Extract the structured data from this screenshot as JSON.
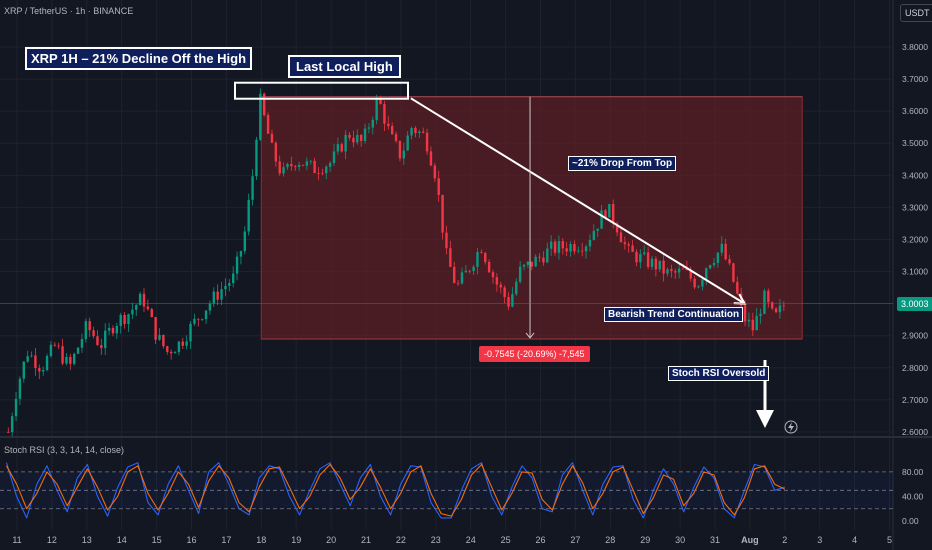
{
  "header": {
    "symbol_line": "XRP / TetherUS · 1h · BINANCE",
    "currency_tag": "USDT"
  },
  "annotations": {
    "title": "XRP 1H – 21% Decline Off the High",
    "last_local_high": "Last Local High",
    "drop_from_top": "~21% Drop From Top",
    "bearish_trend": "Bearish Trend Continuation",
    "stoch_rsi_oversold": "Stoch RSI Oversold",
    "measure_label": "-0.7545 (-20.69%) -7,545"
  },
  "current_price": "3.0003",
  "colors": {
    "background": "#131722",
    "up_candle": "#089981",
    "down_candle": "#f23645",
    "range_fill": "#5c1f24",
    "stoch_k": "#2962ff",
    "stoch_d": "#ff6d00",
    "annotation_box": "#0f1f5c"
  },
  "chart_data": [
    {
      "type": "candlestick",
      "title": "XRP / TetherUS · 1h · BINANCE",
      "y_axis_ticks": [
        "3.8000",
        "3.7000",
        "3.6000",
        "3.5000",
        "3.4000",
        "3.3000",
        "3.2000",
        "3.1000",
        "3.0000",
        "2.9000",
        "2.8000",
        "2.7000",
        "2.6000"
      ],
      "ylim": [
        2.58,
        3.85
      ],
      "x_axis_ticks": [
        "11",
        "12",
        "13",
        "14",
        "15",
        "16",
        "17",
        "18",
        "19",
        "20",
        "21",
        "22",
        "23",
        "24",
        "25",
        "26",
        "27",
        "28",
        "29",
        "30",
        "31",
        "Aug",
        "2",
        "3",
        "4",
        "5"
      ],
      "close_path": [
        {
          "day": 10.75,
          "price": 2.6
        },
        {
          "day": 11.0,
          "price": 2.74
        },
        {
          "day": 11.3,
          "price": 2.85
        },
        {
          "day": 11.7,
          "price": 2.8
        },
        {
          "day": 12.1,
          "price": 2.87
        },
        {
          "day": 12.5,
          "price": 2.8
        },
        {
          "day": 13.0,
          "price": 2.93
        },
        {
          "day": 13.4,
          "price": 2.87
        },
        {
          "day": 13.8,
          "price": 2.94
        },
        {
          "day": 14.2,
          "price": 2.97
        },
        {
          "day": 14.6,
          "price": 3.02
        },
        {
          "day": 15.0,
          "price": 2.9
        },
        {
          "day": 15.3,
          "price": 2.85
        },
        {
          "day": 15.7,
          "price": 2.88
        },
        {
          "day": 16.0,
          "price": 2.93
        },
        {
          "day": 16.5,
          "price": 3.0
        },
        {
          "day": 16.9,
          "price": 3.05
        },
        {
          "day": 17.2,
          "price": 3.08
        },
        {
          "day": 17.5,
          "price": 3.2
        },
        {
          "day": 17.75,
          "price": 3.4
        },
        {
          "day": 17.95,
          "price": 3.64
        },
        {
          "day": 18.3,
          "price": 3.48
        },
        {
          "day": 18.6,
          "price": 3.4
        },
        {
          "day": 19.0,
          "price": 3.45
        },
        {
          "day": 19.5,
          "price": 3.42
        },
        {
          "day": 20.0,
          "price": 3.44
        },
        {
          "day": 20.5,
          "price": 3.53
        },
        {
          "day": 20.9,
          "price": 3.5
        },
        {
          "day": 21.35,
          "price": 3.64
        },
        {
          "day": 21.7,
          "price": 3.52
        },
        {
          "day": 22.0,
          "price": 3.46
        },
        {
          "day": 22.3,
          "price": 3.55
        },
        {
          "day": 22.7,
          "price": 3.52
        },
        {
          "day": 23.0,
          "price": 3.4
        },
        {
          "day": 23.3,
          "price": 3.15
        },
        {
          "day": 23.6,
          "price": 3.05
        },
        {
          "day": 23.9,
          "price": 3.1
        },
        {
          "day": 24.3,
          "price": 3.18
        },
        {
          "day": 24.7,
          "price": 3.07
        },
        {
          "day": 25.1,
          "price": 3.0
        },
        {
          "day": 25.4,
          "price": 3.1
        },
        {
          "day": 25.8,
          "price": 3.13
        },
        {
          "day": 26.3,
          "price": 3.17
        },
        {
          "day": 26.8,
          "price": 3.18
        },
        {
          "day": 27.3,
          "price": 3.19
        },
        {
          "day": 27.9,
          "price": 3.3
        },
        {
          "day": 28.2,
          "price": 3.24
        },
        {
          "day": 28.5,
          "price": 3.16
        },
        {
          "day": 28.9,
          "price": 3.14
        },
        {
          "day": 29.3,
          "price": 3.12
        },
        {
          "day": 29.7,
          "price": 3.09
        },
        {
          "day": 30.1,
          "price": 3.1
        },
        {
          "day": 30.5,
          "price": 3.06
        },
        {
          "day": 30.8,
          "price": 3.13
        },
        {
          "day": 31.2,
          "price": 3.17
        },
        {
          "day": 31.5,
          "price": 3.08
        },
        {
          "day": 31.8,
          "price": 2.96
        },
        {
          "day": 32.1,
          "price": 2.92
        },
        {
          "day": 32.4,
          "price": 3.02
        },
        {
          "day": 32.7,
          "price": 2.95
        },
        {
          "day": 33.0,
          "price": 3.0
        }
      ],
      "highlight_box": {
        "from_day": 18.0,
        "to_day": 33.5,
        "top_price": 3.645,
        "bottom_price": 2.89
      },
      "trend_line": [
        {
          "day": 22.0,
          "price": 3.64
        },
        {
          "day": 31.85,
          "price": 3.0
        }
      ],
      "last_local_high_price": 3.645,
      "measure": {
        "day": 25.7,
        "from_price": 3.645,
        "to_price": 2.89
      },
      "current_price": 3.0003
    },
    {
      "type": "line",
      "title": "Stoch RSI (3, 3, 14, 14, close)",
      "y_axis_ticks": [
        "80.00",
        "40.00",
        "0.00"
      ],
      "ylim": [
        0,
        100
      ],
      "reference_levels": [
        80,
        50,
        20
      ],
      "series": [
        {
          "name": "K",
          "values": [
            95,
            40,
            5,
            60,
            90,
            50,
            15,
            70,
            92,
            40,
            8,
            55,
            88,
            95,
            30,
            10,
            60,
            90,
            50,
            12,
            80,
            95,
            60,
            20,
            10,
            70,
            90,
            85,
            40,
            10,
            50,
            85,
            95,
            60,
            25,
            70,
            92,
            40,
            10,
            60,
            90,
            88,
            30,
            5,
            5,
            50,
            85,
            95,
            40,
            10,
            55,
            90,
            70,
            20,
            15,
            75,
            95,
            50,
            10,
            60,
            88,
            90,
            35,
            5,
            50,
            85,
            60,
            15,
            55,
            88,
            70,
            20,
            5,
            50,
            92,
            88,
            50,
            55
          ]
        },
        {
          "name": "D",
          "values": [
            90,
            60,
            20,
            45,
            80,
            60,
            25,
            55,
            85,
            55,
            18,
            40,
            80,
            90,
            45,
            18,
            45,
            80,
            60,
            22,
            65,
            90,
            70,
            30,
            15,
            55,
            85,
            88,
            55,
            20,
            40,
            75,
            92,
            70,
            35,
            55,
            85,
            55,
            20,
            45,
            80,
            90,
            45,
            12,
            8,
            35,
            75,
            92,
            55,
            18,
            45,
            80,
            78,
            35,
            18,
            60,
            90,
            62,
            20,
            45,
            80,
            88,
            50,
            12,
            38,
            75,
            68,
            25,
            45,
            80,
            75,
            30,
            10,
            38,
            85,
            90,
            60,
            52
          ]
        }
      ]
    }
  ]
}
